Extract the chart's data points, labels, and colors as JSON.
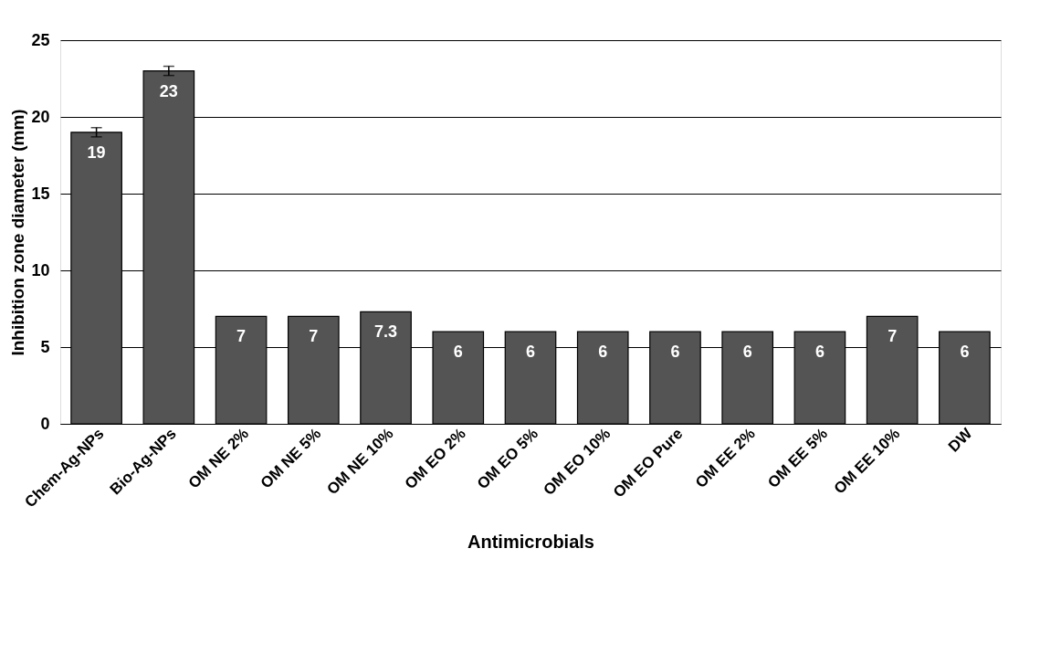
{
  "chart_data": {
    "type": "bar",
    "xlabel": "Antimicrobials",
    "ylabel": "Inhibition zone diameter (mm)",
    "categories": [
      "Chem-Ag-NPs",
      "Bio-Ag-NPs",
      "OM NE 2%",
      "OM NE 5%",
      "OM NE 10%",
      "OM EO 2%",
      "OM EO 5%",
      "OM EO 10%",
      "OM EO Pure",
      "OM EE 2%",
      "OM EE 5%",
      "OM EE 10%",
      "DW"
    ],
    "values": [
      19,
      23,
      7,
      7,
      7.3,
      6,
      6,
      6,
      6,
      6,
      6,
      7,
      6
    ],
    "errors": [
      0.3,
      0.3,
      null,
      null,
      null,
      null,
      null,
      null,
      null,
      null,
      null,
      null,
      null
    ],
    "color": "#545454",
    "ylim": [
      0,
      25
    ],
    "yticks": [
      0,
      5,
      10,
      15,
      20,
      25
    ],
    "grid": "y",
    "data_labels": true
  }
}
